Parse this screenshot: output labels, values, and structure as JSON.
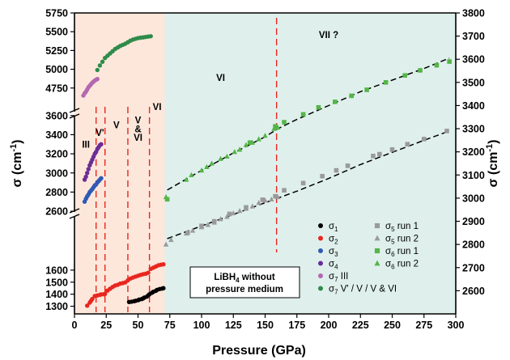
{
  "chart_data": {
    "type": "scatter",
    "xlabel": "Pressure (GPa)",
    "ylabel_left": "σ (cm",
    "ylabel_right": "σ (cm",
    "ylabel_sup": "-1",
    "ylabel_close": ")",
    "xlim": [
      0,
      300
    ],
    "x_ticks": [
      0,
      25,
      50,
      75,
      100,
      125,
      150,
      175,
      200,
      225,
      250,
      275,
      300
    ],
    "y_left_broken_axis": true,
    "y_left_panels": [
      {
        "range": [
          1250,
          1700
        ],
        "ticks": [
          1300,
          1400,
          1500,
          1600
        ]
      },
      {
        "range": [
          2550,
          3700
        ],
        "ticks": [
          2600,
          2800,
          3000,
          3200,
          3400,
          3600
        ]
      },
      {
        "range": [
          4500,
          5750
        ],
        "ticks": [
          4750,
          5000,
          5250,
          5500,
          5750
        ]
      }
    ],
    "y_right_lim": [
      2500,
      3800
    ],
    "y_right_ticks": [
      2600,
      2700,
      2800,
      2900,
      3000,
      3100,
      3200,
      3300,
      3400,
      3500,
      3600,
      3700,
      3800
    ],
    "shaded_regions": [
      {
        "range": [
          0,
          71
        ],
        "color": "#fde7db"
      },
      {
        "range": [
          71,
          300
        ],
        "color": "#dff0ec"
      }
    ],
    "phase_boundaries": [
      17,
      24,
      42,
      59,
      159
    ],
    "phase_labels": [
      {
        "text": "III",
        "x": 9,
        "panel": 1,
        "y": 3300
      },
      {
        "text": "V'",
        "x": 20,
        "panel": 1,
        "y": 3420
      },
      {
        "text": "V",
        "x": 33,
        "panel": 1,
        "y": 3500
      },
      {
        "text": "V",
        "x": 50,
        "panel": 1,
        "y": 3550
      },
      {
        "text": "&",
        "x": 50,
        "panel": 1,
        "y": 3460
      },
      {
        "text": "VI",
        "x": 50,
        "panel": 1,
        "y": 3370
      },
      {
        "text": "VI",
        "x": 65,
        "panel": 2,
        "y": 4500
      },
      {
        "text": "VI",
        "x": 115,
        "right": 3520
      },
      {
        "text": "VII ?",
        "x": 200,
        "right": 3705
      }
    ],
    "series": [
      {
        "name": "σ",
        "sub": "1",
        "suffix": "",
        "axis": "left",
        "panel": 0,
        "marker": "circle",
        "color": "#000000",
        "points": [
          [
            43,
            1335
          ],
          [
            45,
            1338
          ],
          [
            47,
            1342
          ],
          [
            48,
            1345
          ],
          [
            50,
            1350
          ],
          [
            51,
            1355
          ],
          [
            53,
            1360
          ],
          [
            54,
            1365
          ],
          [
            55,
            1372
          ],
          [
            57,
            1380
          ],
          [
            58,
            1390
          ],
          [
            59,
            1400
          ],
          [
            61,
            1412
          ],
          [
            62,
            1420
          ],
          [
            64,
            1428
          ],
          [
            65,
            1436
          ],
          [
            67,
            1443
          ],
          [
            69,
            1447
          ],
          [
            70,
            1450
          ]
        ]
      },
      {
        "name": "σ",
        "sub": "2",
        "suffix": "",
        "axis": "left",
        "panel": 0,
        "marker": "circle",
        "color": "#e8261f",
        "points": [
          [
            10,
            1305
          ],
          [
            12,
            1330
          ],
          [
            13,
            1345
          ],
          [
            14,
            1360
          ],
          [
            16,
            1385
          ],
          [
            18,
            1390
          ],
          [
            20,
            1395
          ],
          [
            21,
            1398
          ],
          [
            23,
            1400
          ],
          [
            24,
            1402
          ],
          [
            26,
            1430
          ],
          [
            28,
            1445
          ],
          [
            30,
            1460
          ],
          [
            32,
            1472
          ],
          [
            34,
            1478
          ],
          [
            36,
            1488
          ],
          [
            38,
            1492
          ],
          [
            40,
            1498
          ],
          [
            42,
            1515
          ],
          [
            44,
            1530
          ],
          [
            46,
            1538
          ],
          [
            48,
            1546
          ],
          [
            50,
            1553
          ],
          [
            52,
            1560
          ],
          [
            54,
            1566
          ],
          [
            56,
            1570
          ],
          [
            58,
            1578
          ],
          [
            60,
            1610
          ],
          [
            62,
            1620
          ],
          [
            64,
            1630
          ],
          [
            66,
            1640
          ],
          [
            68,
            1645
          ],
          [
            70,
            1648
          ]
        ]
      },
      {
        "name": "σ",
        "sub": "3",
        "suffix": "",
        "axis": "left",
        "panel": 1,
        "marker": "circle",
        "color": "#2f5ab5",
        "points": [
          [
            8,
            2700
          ],
          [
            9,
            2730
          ],
          [
            10,
            2755
          ],
          [
            11,
            2775
          ],
          [
            12,
            2800
          ],
          [
            13,
            2815
          ],
          [
            14,
            2830
          ],
          [
            15,
            2850
          ],
          [
            16,
            2870
          ],
          [
            17,
            2880
          ],
          [
            18,
            2900
          ],
          [
            19,
            2915
          ],
          [
            20,
            2930
          ],
          [
            21,
            2945
          ]
        ]
      },
      {
        "name": "σ",
        "sub": "4",
        "suffix": "",
        "axis": "left",
        "panel": 1,
        "marker": "circle",
        "color": "#6b2c95",
        "points": [
          [
            8,
            2930
          ],
          [
            9,
            2960
          ],
          [
            10,
            3000
          ],
          [
            11,
            3040
          ],
          [
            12,
            3080
          ],
          [
            13,
            3110
          ],
          [
            14,
            3140
          ],
          [
            15,
            3170
          ],
          [
            16,
            3200
          ],
          [
            17,
            3220
          ],
          [
            18,
            3250
          ],
          [
            19,
            3270
          ],
          [
            20,
            3290
          ],
          [
            21,
            3300
          ]
        ]
      },
      {
        "name": "σ",
        "sub": "7",
        "suffix": " III",
        "axis": "left",
        "panel": 2,
        "marker": "circle",
        "color": "#b468b0",
        "points": [
          [
            7,
            4650
          ],
          [
            8,
            4680
          ],
          [
            9,
            4700
          ],
          [
            10,
            4730
          ],
          [
            11,
            4760
          ],
          [
            12,
            4780
          ],
          [
            13,
            4800
          ],
          [
            14,
            4820
          ],
          [
            15,
            4835
          ],
          [
            16,
            4850
          ],
          [
            17,
            4860
          ],
          [
            18,
            4870
          ]
        ]
      },
      {
        "name": "σ",
        "sub": "7",
        "suffix": " V' / V / V & VI",
        "axis": "left",
        "panel": 2,
        "marker": "circle",
        "color": "#2e8b4a",
        "points": [
          [
            18,
            4990
          ],
          [
            20,
            5050
          ],
          [
            22,
            5100
          ],
          [
            24,
            5150
          ],
          [
            26,
            5180
          ],
          [
            28,
            5210
          ],
          [
            30,
            5240
          ],
          [
            32,
            5270
          ],
          [
            34,
            5290
          ],
          [
            36,
            5310
          ],
          [
            38,
            5325
          ],
          [
            40,
            5340
          ],
          [
            42,
            5360
          ],
          [
            44,
            5380
          ],
          [
            46,
            5395
          ],
          [
            48,
            5405
          ],
          [
            50,
            5415
          ],
          [
            52,
            5420
          ],
          [
            54,
            5425
          ],
          [
            56,
            5430
          ],
          [
            58,
            5435
          ],
          [
            60,
            5440
          ]
        ]
      },
      {
        "name": "σ",
        "sub": "5",
        "suffix": " run 1",
        "axis": "right",
        "marker": "square",
        "color": "#9a9a9a",
        "points": [
          [
            89,
            2850
          ],
          [
            100,
            2880
          ],
          [
            110,
            2900
          ],
          [
            122,
            2932
          ],
          [
            135,
            2960
          ],
          [
            148,
            2993
          ],
          [
            158,
            3008
          ],
          [
            165,
            3034
          ],
          [
            180,
            3065
          ],
          [
            195,
            3095
          ],
          [
            206,
            3120
          ],
          [
            215,
            3140
          ],
          [
            235,
            3182
          ],
          [
            240,
            3190
          ],
          [
            250,
            3210
          ],
          [
            262,
            3233
          ],
          [
            275,
            3255
          ],
          [
            293,
            3290
          ]
        ]
      },
      {
        "name": "σ",
        "sub": "5",
        "suffix": " run 2",
        "axis": "right",
        "marker": "triangle",
        "color": "#9a9a9a",
        "points": [
          [
            72,
            2800
          ],
          [
            76,
            2820
          ],
          [
            88,
            2848
          ],
          [
            93,
            2860
          ],
          [
            100,
            2875
          ],
          [
            105,
            2885
          ],
          [
            110,
            2895
          ],
          [
            115,
            2910
          ],
          [
            120,
            2920
          ],
          [
            125,
            2935
          ],
          [
            130,
            2945
          ],
          [
            135,
            2955
          ],
          [
            140,
            2965
          ],
          [
            145,
            2980
          ],
          [
            150,
            2990
          ],
          [
            155,
            2995
          ],
          [
            160,
            3005
          ]
        ]
      },
      {
        "name": "σ",
        "sub": "6",
        "suffix": " run 1",
        "axis": "right",
        "marker": "square",
        "color": "#55b548",
        "points": [
          [
            73,
            2995
          ],
          [
            138,
            3240
          ],
          [
            158,
            3310
          ],
          [
            165,
            3328
          ],
          [
            180,
            3362
          ],
          [
            192,
            3392
          ],
          [
            205,
            3416
          ],
          [
            218,
            3442
          ],
          [
            230,
            3468
          ],
          [
            245,
            3500
          ],
          [
            260,
            3530
          ],
          [
            272,
            3552
          ],
          [
            285,
            3574
          ],
          [
            295,
            3590
          ]
        ]
      },
      {
        "name": "σ",
        "sub": "6",
        "suffix": " run 2",
        "axis": "right",
        "marker": "triangle",
        "color": "#55b548",
        "points": [
          [
            72,
            3005
          ],
          [
            88,
            3080
          ],
          [
            92,
            3100
          ],
          [
            100,
            3120
          ],
          [
            104,
            3135
          ],
          [
            108,
            3150
          ],
          [
            115,
            3170
          ],
          [
            120,
            3180
          ],
          [
            126,
            3200
          ],
          [
            130,
            3210
          ],
          [
            135,
            3230
          ],
          [
            140,
            3240
          ],
          [
            145,
            3255
          ],
          [
            150,
            3270
          ],
          [
            157,
            3300
          ],
          [
            160,
            3305
          ]
        ]
      }
    ],
    "fit_lines": [
      {
        "axis": "right",
        "points": [
          [
            73,
            2825
          ],
          [
            100,
            2880
          ],
          [
            125,
            2930
          ],
          [
            150,
            2980
          ],
          [
            160,
            3000
          ],
          [
            175,
            3030
          ],
          [
            200,
            3085
          ],
          [
            225,
            3145
          ],
          [
            250,
            3198
          ],
          [
            275,
            3250
          ],
          [
            295,
            3290
          ]
        ]
      },
      {
        "axis": "right",
        "points": [
          [
            73,
            3035
          ],
          [
            100,
            3120
          ],
          [
            125,
            3195
          ],
          [
            150,
            3265
          ],
          [
            160,
            3300
          ],
          [
            175,
            3340
          ],
          [
            200,
            3400
          ],
          [
            225,
            3460
          ],
          [
            250,
            3510
          ],
          [
            275,
            3560
          ],
          [
            295,
            3605
          ]
        ]
      }
    ],
    "annotation": {
      "line1": "LiBH",
      "sub": "4",
      "line1_after": " without",
      "line2": "pressure medium"
    }
  }
}
